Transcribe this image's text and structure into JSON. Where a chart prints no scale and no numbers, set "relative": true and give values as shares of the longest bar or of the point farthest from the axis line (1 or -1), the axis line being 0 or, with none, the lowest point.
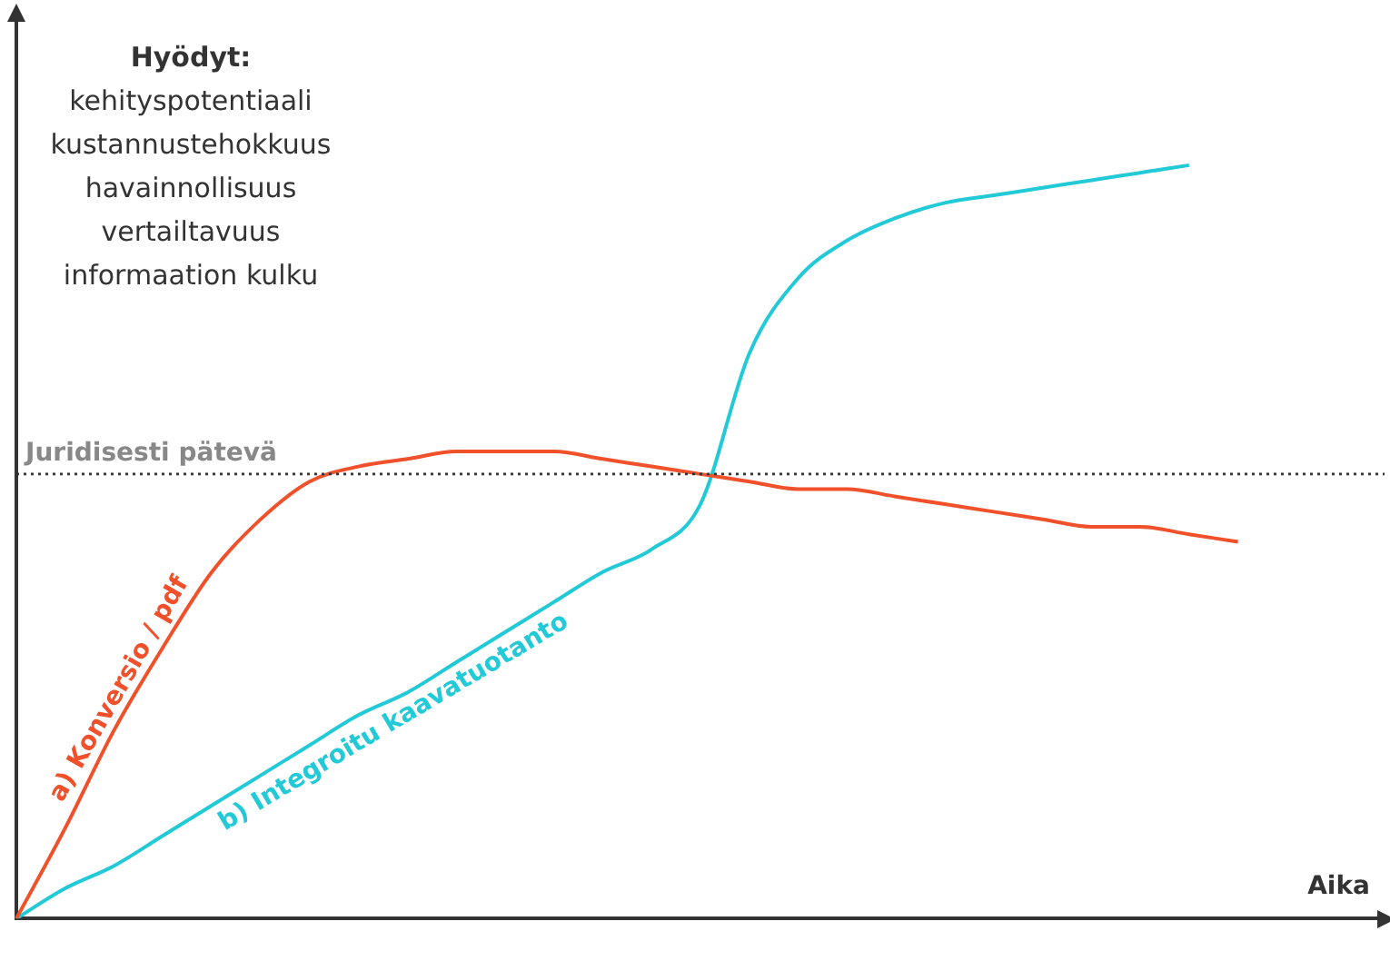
{
  "chart_data": {
    "type": "line",
    "relative": true,
    "xlabel": "Aika",
    "categories": [
      null,
      null,
      null,
      null,
      null,
      null,
      null,
      null,
      null,
      null,
      null,
      null,
      null,
      null,
      null,
      null,
      null,
      null,
      null,
      null,
      null,
      null,
      null,
      null,
      null,
      null,
      null,
      null,
      null
    ],
    "series": [
      {
        "name": "a) Konversio / pdf",
        "color": "#f0502a",
        "values": [
          0,
          0.12,
          0.25,
          0.36,
          0.46,
          0.53,
          0.58,
          0.6,
          0.61,
          0.62,
          0.62,
          0.62,
          0.61,
          0.6,
          0.59,
          0.58,
          0.57,
          0.57,
          0.56,
          0.55,
          0.54,
          0.53,
          0.52,
          0.52,
          0.51,
          0.5,
          null,
          null,
          null
        ]
      },
      {
        "name": "b) Integroitu kaavatuotanto",
        "color": "#22c9d6",
        "values": [
          0,
          0.04,
          0.07,
          0.11,
          0.15,
          0.19,
          0.23,
          0.27,
          0.3,
          0.34,
          0.38,
          0.42,
          0.46,
          0.49,
          0.55,
          0.75,
          0.85,
          0.9,
          0.93,
          0.95,
          0.96,
          0.97,
          0.98,
          0.99,
          1,
          null,
          null,
          null,
          null
        ]
      }
    ],
    "ref_lines": [
      {
        "axis": "y",
        "value": 0.59,
        "label": "Juridisesti pätevä",
        "color": "#333333",
        "line_style": "dotted"
      }
    ],
    "annotations": [
      "Hyödyt:",
      "kehityspotentiaali",
      "kustannustehokkuus",
      "havainnollisuus",
      "vertailtavuus",
      "informaation kulku"
    ],
    "legend": false,
    "grid": false,
    "marker": "none",
    "line_style": "solid"
  }
}
